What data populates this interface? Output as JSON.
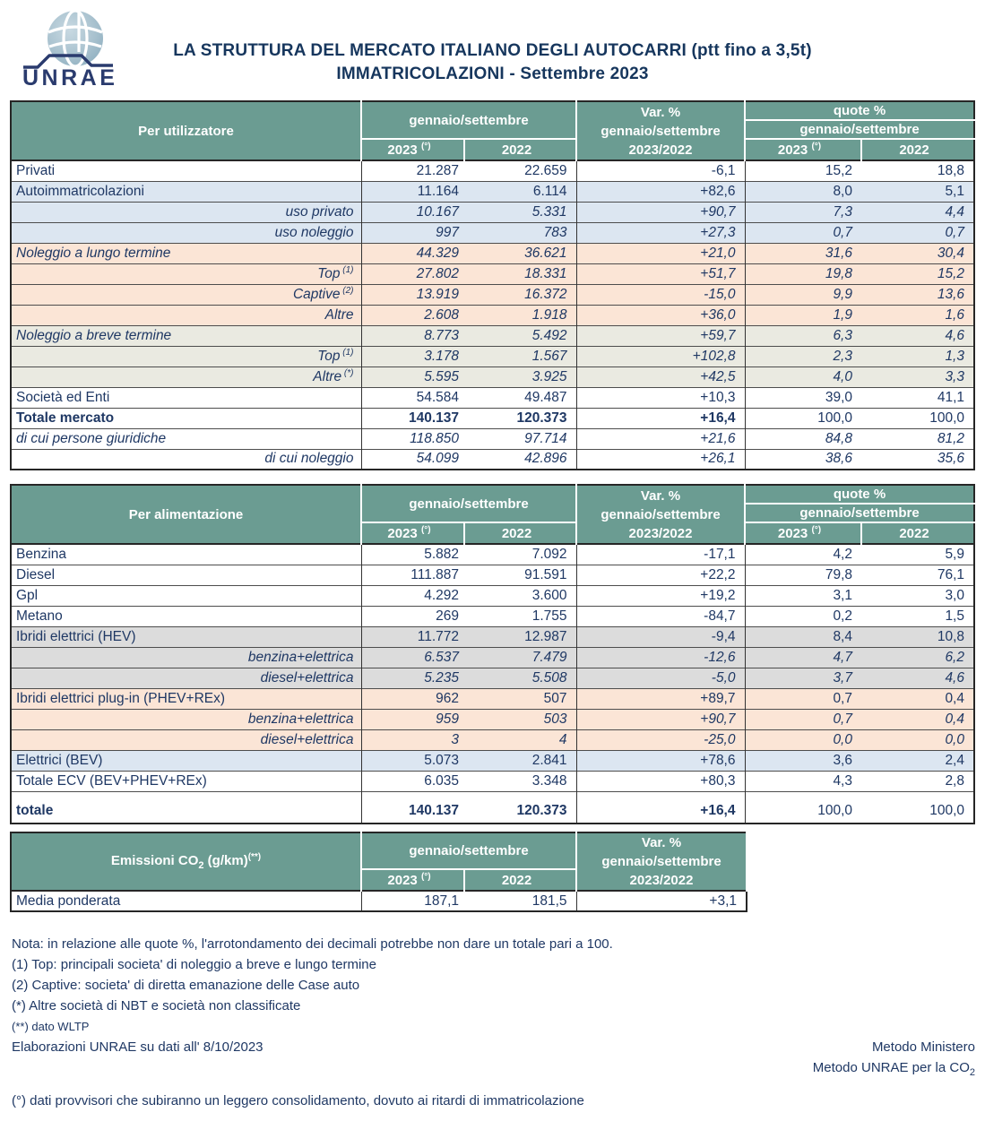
{
  "header": {
    "logo_text": "UNRAE",
    "title_line1": "LA STRUTTURA DEL MERCATO ITALIANO DEGLI AUTOCARRI (ptt fino a 3,5t)",
    "title_line2": "IMMATRICOLAZIONI - Settembre 2023"
  },
  "colors": {
    "header_teal": "#6b9c92",
    "text_navy": "#1f3864",
    "row_blue": "#dce6f1",
    "row_peach": "#fbe5d6",
    "row_sand": "#eaeae1",
    "row_gray": "#dcdcdc",
    "border_dark": "#262626"
  },
  "columns_common": {
    "period_group": "gennaio/settembre",
    "y2023": "2023",
    "y2023_sup": "(°)",
    "y2022": "2022",
    "var_line1": "Var. %",
    "var_line2": "gennaio/settembre",
    "var_line3": "2023/2022",
    "quote_line1": "quote %",
    "quote_line2": "gennaio/settembre"
  },
  "tables": [
    {
      "id": "per-utilizzatore",
      "label": "Per utilizzatore",
      "has_quote": true,
      "rows": [
        {
          "label": "Privati",
          "align": "left",
          "style": "regular",
          "bg": "white",
          "values": [
            "21.287",
            "22.659",
            "-6,1",
            "15,2",
            "18,8"
          ]
        },
        {
          "label": "Autoimmatricolazioni",
          "align": "left",
          "style": "regular",
          "bg": "blue",
          "values": [
            "11.164",
            "6.114",
            "+82,6",
            "8,0",
            "5,1"
          ]
        },
        {
          "label": "uso privato",
          "align": "right",
          "style": "italic",
          "bg": "blue",
          "values": [
            "10.167",
            "5.331",
            "+90,7",
            "7,3",
            "4,4"
          ]
        },
        {
          "label": "uso noleggio",
          "align": "right",
          "style": "italic",
          "bg": "blue",
          "values": [
            "997",
            "783",
            "+27,3",
            "0,7",
            "0,7"
          ]
        },
        {
          "label": "Noleggio a lungo termine",
          "align": "left",
          "style": "italic",
          "bg": "peach",
          "values": [
            "44.329",
            "36.621",
            "+21,0",
            "31,6",
            "30,4"
          ]
        },
        {
          "label": "Top",
          "sup": "(1)",
          "align": "right",
          "style": "italic",
          "bg": "peach",
          "values": [
            "27.802",
            "18.331",
            "+51,7",
            "19,8",
            "15,2"
          ]
        },
        {
          "label": "Captive",
          "sup": "(2)",
          "align": "right",
          "style": "italic",
          "bg": "peach",
          "values": [
            "13.919",
            "16.372",
            "-15,0",
            "9,9",
            "13,6"
          ]
        },
        {
          "label": "Altre",
          "align": "right",
          "style": "italic",
          "bg": "peach",
          "values": [
            "2.608",
            "1.918",
            "+36,0",
            "1,9",
            "1,6"
          ]
        },
        {
          "label": "Noleggio a breve termine",
          "align": "left",
          "style": "italic",
          "bg": "sand",
          "values": [
            "8.773",
            "5.492",
            "+59,7",
            "6,3",
            "4,6"
          ]
        },
        {
          "label": "Top",
          "sup": "(1)",
          "align": "right",
          "style": "italic",
          "bg": "sand",
          "values": [
            "3.178",
            "1.567",
            "+102,8",
            "2,3",
            "1,3"
          ]
        },
        {
          "label": "Altre",
          "sup": "(*)",
          "align": "right",
          "style": "italic",
          "bg": "sand",
          "values": [
            "5.595",
            "3.925",
            "+42,5",
            "4,0",
            "3,3"
          ]
        },
        {
          "label": "Società ed Enti",
          "align": "left",
          "style": "regular",
          "bg": "white",
          "values": [
            "54.584",
            "49.487",
            "+10,3",
            "39,0",
            "41,1"
          ]
        },
        {
          "label": "Totale mercato",
          "align": "left",
          "style": "bold",
          "bg": "white",
          "values": [
            "140.137",
            "120.373",
            "+16,4",
            "100,0",
            "100,0"
          ]
        },
        {
          "label": "di cui persone giuridiche",
          "align": "left",
          "style": "italic",
          "bg": "white",
          "values": [
            "118.850",
            "97.714",
            "+21,6",
            "84,8",
            "81,2"
          ]
        },
        {
          "label": "di cui noleggio",
          "align": "right",
          "style": "italic",
          "bg": "white",
          "values": [
            "54.099",
            "42.896",
            "+26,1",
            "38,6",
            "35,6"
          ]
        }
      ]
    },
    {
      "id": "per-alimentazione",
      "label": "Per alimentazione",
      "has_quote": true,
      "rows": [
        {
          "label": "Benzina",
          "align": "left",
          "style": "regular",
          "bg": "white",
          "values": [
            "5.882",
            "7.092",
            "-17,1",
            "4,2",
            "5,9"
          ]
        },
        {
          "label": "Diesel",
          "align": "left",
          "style": "regular",
          "bg": "white",
          "values": [
            "111.887",
            "91.591",
            "+22,2",
            "79,8",
            "76,1"
          ]
        },
        {
          "label": "Gpl",
          "align": "left",
          "style": "regular",
          "bg": "white",
          "values": [
            "4.292",
            "3.600",
            "+19,2",
            "3,1",
            "3,0"
          ]
        },
        {
          "label": "Metano",
          "align": "left",
          "style": "regular",
          "bg": "white",
          "values": [
            "269",
            "1.755",
            "-84,7",
            "0,2",
            "1,5"
          ]
        },
        {
          "label": "Ibridi elettrici (HEV)",
          "align": "left",
          "style": "regular",
          "bg": "gray",
          "values": [
            "11.772",
            "12.987",
            "-9,4",
            "8,4",
            "10,8"
          ]
        },
        {
          "label": "benzina+elettrica",
          "align": "right",
          "style": "italic",
          "bg": "gray",
          "values": [
            "6.537",
            "7.479",
            "-12,6",
            "4,7",
            "6,2"
          ]
        },
        {
          "label": "diesel+elettrica",
          "align": "right",
          "style": "italic",
          "bg": "gray",
          "values": [
            "5.235",
            "5.508",
            "-5,0",
            "3,7",
            "4,6"
          ]
        },
        {
          "label": "Ibridi elettrici plug-in (PHEV+REx)",
          "align": "left",
          "style": "regular",
          "bg": "peach",
          "values": [
            "962",
            "507",
            "+89,7",
            "0,7",
            "0,4"
          ]
        },
        {
          "label": "benzina+elettrica",
          "align": "right",
          "style": "italic",
          "bg": "peach",
          "values": [
            "959",
            "503",
            "+90,7",
            "0,7",
            "0,4"
          ]
        },
        {
          "label": "diesel+elettrica",
          "align": "right",
          "style": "italic",
          "bg": "peach",
          "values": [
            "3",
            "4",
            "-25,0",
            "0,0",
            "0,0"
          ]
        },
        {
          "label": "Elettrici (BEV)",
          "align": "left",
          "style": "regular",
          "bg": "blue",
          "values": [
            "5.073",
            "2.841",
            "+78,6",
            "3,6",
            "2,4"
          ]
        },
        {
          "label": "Totale ECV (BEV+PHEV+REx)",
          "align": "left",
          "style": "regular",
          "bg": "white",
          "values": [
            "6.035",
            "3.348",
            "+80,3",
            "4,3",
            "2,8"
          ]
        },
        {
          "label": "totale",
          "align": "left",
          "style": "bold",
          "tall": true,
          "bg": "white",
          "values": [
            "140.137",
            "120.373",
            "+16,4",
            "100,0",
            "100,0"
          ]
        }
      ]
    },
    {
      "id": "emissioni-co2",
      "label_parts": [
        {
          "t": "Emissioni CO"
        },
        {
          "sub": "2"
        },
        {
          "t": " (g/km)"
        },
        {
          "sup": "(**)"
        }
      ],
      "has_quote": false,
      "rows": [
        {
          "label": "Media ponderata",
          "align": "left",
          "style": "regular",
          "bg": "white",
          "values": [
            "187,1",
            "181,5",
            "+3,1"
          ]
        }
      ]
    }
  ],
  "notes": [
    {
      "left": "Nota: in relazione alle quote %, l'arrotondamento dei decimali potrebbe non dare un totale pari a 100."
    },
    {
      "left": "(1) Top: principali societa' di noleggio a breve e lungo termine"
    },
    {
      "left": "(2) Captive: societa' di diretta emanazione delle Case auto"
    },
    {
      "left": "(*) Altre società di NBT e società non classificate"
    },
    {
      "left": "(**) dato WLTP",
      "small": true
    },
    {
      "left": "Elaborazioni UNRAE su dati all' 8/10/2023",
      "right": "Metodo Ministero"
    },
    {
      "left": "",
      "right": "Metodo UNRAE per la CO",
      "right_sub": "2"
    },
    {
      "left": "(°) dati provvisori che subiranno un leggero consolidamento, dovuto ai ritardi di immatricolazione",
      "gap_top": true
    }
  ]
}
